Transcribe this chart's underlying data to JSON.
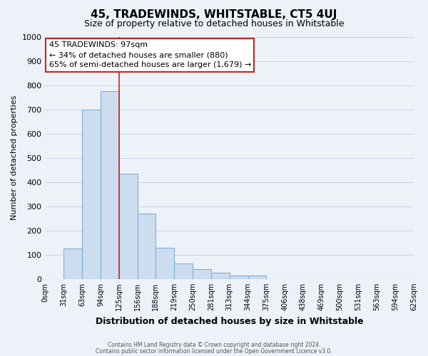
{
  "title": "45, TRADEWINDS, WHITSTABLE, CT5 4UJ",
  "subtitle": "Size of property relative to detached houses in Whitstable",
  "xlabel": "Distribution of detached houses by size in Whitstable",
  "ylabel": "Number of detached properties",
  "footer_lines": [
    "Contains HM Land Registry data © Crown copyright and database right 2024.",
    "Contains public sector information licensed under the Open Government Licence v3.0."
  ],
  "bin_labels": [
    "0sqm",
    "31sqm",
    "63sqm",
    "94sqm",
    "125sqm",
    "156sqm",
    "188sqm",
    "219sqm",
    "250sqm",
    "281sqm",
    "313sqm",
    "344sqm",
    "375sqm",
    "406sqm",
    "438sqm",
    "469sqm",
    "500sqm",
    "531sqm",
    "563sqm",
    "594sqm",
    "625sqm"
  ],
  "bar_values": [
    0,
    125,
    700,
    775,
    435,
    270,
    130,
    65,
    40,
    25,
    15,
    15,
    0,
    0,
    0,
    0,
    0,
    0,
    0,
    0
  ],
  "bar_color": "#ccddef",
  "bar_edge_color": "#7ab0d8",
  "ylim": [
    0,
    1000
  ],
  "yticks": [
    0,
    100,
    200,
    300,
    400,
    500,
    600,
    700,
    800,
    900,
    1000
  ],
  "vline_x_bar_index": 3,
  "vline_color": "#cc2222",
  "annotation_box_text": "45 TRADEWINDS: 97sqm\n← 34% of detached houses are smaller (880)\n65% of semi-detached houses are larger (1,679) →",
  "annotation_box_edge_color": "#cc2222",
  "annotation_box_face_color": "#ffffff",
  "grid_color": "#c8d4e8",
  "background_color": "#edf2f9",
  "title_fontsize": 11,
  "subtitle_fontsize": 9,
  "ylabel_fontsize": 8,
  "xlabel_fontsize": 9,
  "ytick_fontsize": 8,
  "xtick_fontsize": 7
}
